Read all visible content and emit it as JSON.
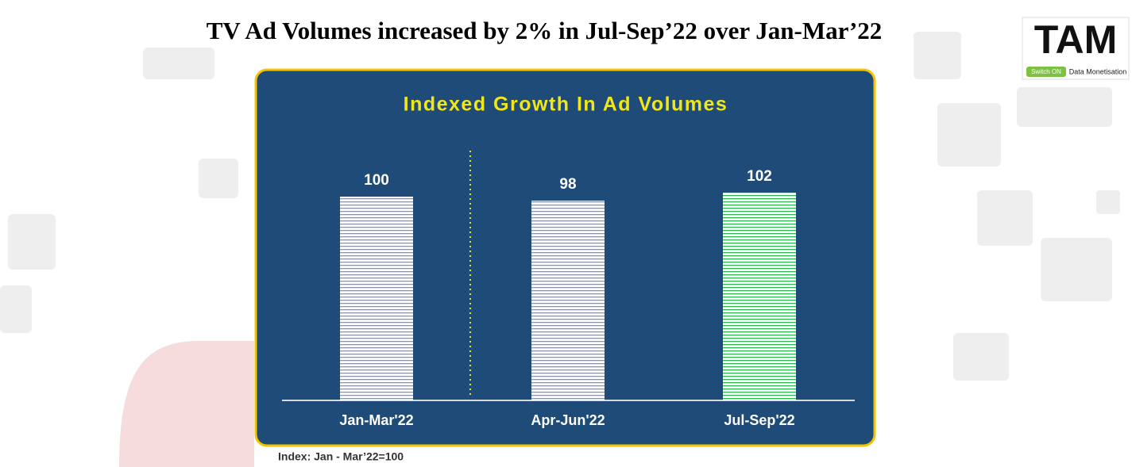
{
  "chart_data": {
    "type": "bar",
    "title": "TV Ad Volumes increased by 2% in Jul-Sep’22 over Jan-Mar’22",
    "subtitle": "Indexed Growth In Ad Volumes",
    "categories": [
      "Jan-Mar'22",
      "Apr-Jun'22",
      "Jul-Sep'22"
    ],
    "values": [
      100,
      98,
      102
    ],
    "colors": [
      "#8e96a6",
      "#8e96a6",
      "#2fb352"
    ],
    "annotation": "Index: Jan - Mar’22=100",
    "logo": {
      "brand": "TAM",
      "tag": "Switch ON",
      "tagline": "Data Monetisation"
    }
  }
}
